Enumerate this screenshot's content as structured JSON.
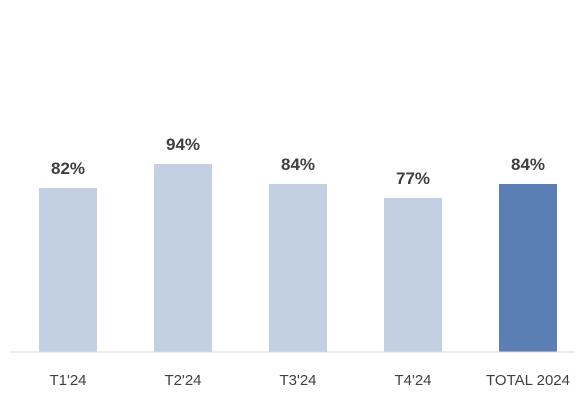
{
  "chart_data": {
    "type": "bar",
    "title": "",
    "xlabel": "",
    "ylabel": "",
    "categories": [
      "T1'24",
      "T2'24",
      "T3'24",
      "T4'24",
      "TOTAL 2024"
    ],
    "values": [
      82,
      94,
      84,
      77,
      84
    ],
    "value_labels": [
      "82%",
      "94%",
      "84%",
      "77%",
      "84%"
    ],
    "unit": "%",
    "ylim": [
      0,
      100
    ],
    "grid": false,
    "legend": "none",
    "colors": {
      "quarter_bar": "#c3cfe2",
      "total_bar": "#5b7fb4",
      "axis_line": "#d9d9d9",
      "text": "#404040"
    },
    "highlight_index": 4
  }
}
